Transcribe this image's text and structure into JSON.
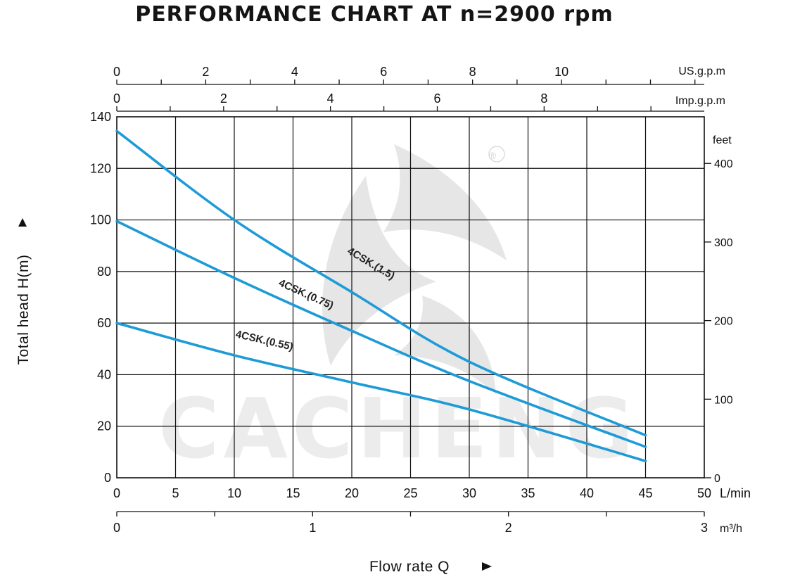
{
  "chart_data": {
    "type": "line",
    "title": "PERFORMANCE CHART AT n=2900 rpm",
    "xlabel": "Flow rate  Q",
    "ylabel": "Total  head H(m)",
    "x_unit": "L/min",
    "xlim": [
      0,
      50
    ],
    "x_ticks": [
      0,
      5,
      10,
      15,
      20,
      25,
      30,
      35,
      40,
      45,
      50
    ],
    "ylim": [
      0,
      140
    ],
    "y_ticks": [
      0,
      20,
      40,
      60,
      80,
      100,
      120,
      140
    ],
    "grid": true,
    "secondary_axes": {
      "feet": {
        "label": "feet",
        "ticks": [
          0,
          100,
          200,
          300,
          400
        ],
        "per_meter": 3.2808
      },
      "m3h": {
        "label": "m³/h",
        "ticks": [
          0,
          1,
          2,
          3
        ],
        "per_lmin": 0.06
      },
      "us_gpm": {
        "label": "US.g.p.m",
        "ticks": [
          0,
          2,
          4,
          6,
          8,
          10
        ],
        "per_lmin": 0.2642
      },
      "imp_gpm": {
        "label": "Imp.g.p.m",
        "ticks": [
          0,
          2,
          4,
          6,
          8
        ],
        "per_lmin": 0.21997
      }
    },
    "series": [
      {
        "name": "4CSK.(1.5)",
        "x": [
          0,
          10,
          20,
          30,
          45
        ],
        "y": [
          134.5,
          100,
          72,
          45,
          16.5
        ]
      },
      {
        "name": "4CSK.(0.75)",
        "x": [
          0,
          10,
          20,
          30,
          45
        ],
        "y": [
          99.5,
          77.5,
          57,
          37.5,
          12
        ]
      },
      {
        "name": "4CSK.(0.55)",
        "x": [
          0,
          10,
          20,
          30,
          45
        ],
        "y": [
          60,
          47.5,
          37,
          26.5,
          6.5
        ]
      }
    ],
    "colors": {
      "line": "#1e9bd7",
      "text": "#111111"
    },
    "watermark": "CACHENG",
    "registered_mark": "®"
  }
}
